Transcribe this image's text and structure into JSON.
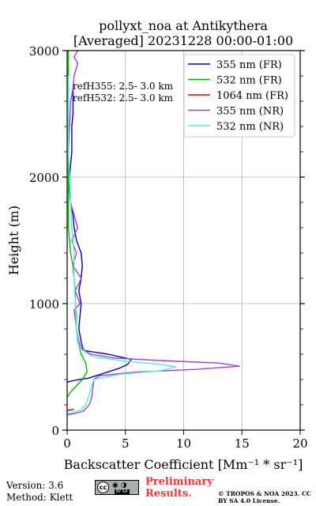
{
  "chart_data": {
    "type": "line",
    "title": "pollyxt_noa at Antikythera",
    "subtitle": "[Averaged] 20231228 00:00-01:00",
    "xlabel": "Backscatter Coefficient [Mm⁻¹ * sr⁻¹]",
    "ylabel": "Height (m)",
    "xlim": [
      0,
      20
    ],
    "ylim": [
      0,
      3000
    ],
    "xticks": [
      "0",
      "5",
      "10",
      "15",
      "20"
    ],
    "yticks": [
      "0",
      "1000",
      "2000",
      "3000"
    ],
    "grid": true,
    "legend_position": "top-right",
    "annotations": [
      "refH355:  2.5- 3.0 km",
      "refH532:  2.5- 3.0 km"
    ],
    "series": [
      {
        "name": "355 nm (FR)",
        "color": "#0000cc",
        "x": [
          0,
          0.5,
          1.0,
          1.8,
          2.5,
          3.5,
          4.5,
          5.2,
          5.5,
          3.5,
          1.4,
          1.2,
          1.0,
          1.1,
          1.2,
          1.0,
          1.2,
          1.3,
          1.2,
          0.8,
          0.6,
          0.5,
          0.3,
          0.2,
          0.2,
          0.3,
          0.4,
          0.4,
          0.4,
          0.5,
          0.5,
          0.5
        ],
        "y": [
          380,
          390,
          400,
          410,
          430,
          460,
          490,
          520,
          560,
          600,
          630,
          700,
          800,
          900,
          1000,
          1100,
          1200,
          1300,
          1400,
          1500,
          1600,
          1700,
          1800,
          1900,
          2000,
          2100,
          2200,
          2300,
          2400,
          2500,
          2600,
          2700
        ]
      },
      {
        "name": "532 nm (FR)",
        "color": "#00bb00",
        "x": [
          0,
          0.3,
          0.8,
          1.3,
          1.7,
          1.6,
          1.2,
          0.9,
          0.8,
          0.8,
          0.7,
          0.7,
          0.6,
          0.5,
          0.3,
          0.2,
          0.1,
          0.1,
          0.1,
          0.1,
          0.1,
          0.1,
          0.1,
          0.1,
          0.1,
          0.1
        ],
        "y": [
          260,
          300,
          350,
          400,
          460,
          530,
          600,
          700,
          800,
          900,
          1000,
          1100,
          1200,
          1300,
          1400,
          1500,
          1600,
          1700,
          1800,
          2000,
          2200,
          2400,
          2600,
          2800,
          2900,
          3000
        ]
      },
      {
        "name": "1064 nm (FR)",
        "color": "#dd0000",
        "x": [
          0,
          0.2,
          0.4,
          0.6
        ],
        "y": [
          155,
          160,
          162,
          164
        ]
      },
      {
        "name": "355 nm (NR)",
        "color": "#a040e0",
        "x": [
          0,
          0.6,
          1.4,
          1.9,
          2.1,
          2.2,
          2.3,
          2.8,
          6.0,
          11.0,
          14.8,
          13.0,
          8.0,
          4.0,
          2.0,
          1.2,
          1.0,
          0.8,
          0.6,
          1.1,
          0.7,
          1.2,
          0.5,
          0.8,
          0.4,
          0.9,
          0.6,
          0.3,
          0.2,
          0.1,
          0.2,
          0.3,
          0.5,
          0.6,
          0.9,
          0.6,
          0.9
        ],
        "y": [
          120,
          130,
          150,
          200,
          260,
          330,
          400,
          430,
          460,
          480,
          505,
          530,
          550,
          570,
          600,
          650,
          700,
          800,
          950,
          1000,
          1100,
          1200,
          1300,
          1400,
          1500,
          1600,
          1700,
          1800,
          2000,
          2200,
          2400,
          2600,
          2700,
          2800,
          2900,
          2950,
          3000
        ]
      },
      {
        "name": "532 nm (NR)",
        "color": "#55eed0",
        "x": [
          0,
          0.5,
          1.2,
          1.6,
          1.8,
          2.0,
          2.3,
          4.5,
          8.0,
          9.3,
          8.0,
          5.0,
          2.2,
          1.0,
          0.8,
          0.7,
          0.6,
          0.6,
          0.5,
          0.4,
          0.3,
          0.2,
          0.1,
          0.1,
          0.1,
          0.1
        ],
        "y": [
          130,
          140,
          160,
          200,
          250,
          320,
          400,
          440,
          470,
          500,
          520,
          545,
          580,
          650,
          800,
          1000,
          1200,
          1400,
          1500,
          1600,
          1800,
          2000,
          2200,
          2400,
          2600,
          2800
        ]
      }
    ]
  },
  "footer": {
    "version": "Version: 3.6",
    "method": "Method: Klett",
    "cc_terms": "BY  SA",
    "preliminary": "Preliminary Results.",
    "copyright": "© TROPOS & NOA 2023. CC BY SA 4.0 License."
  }
}
